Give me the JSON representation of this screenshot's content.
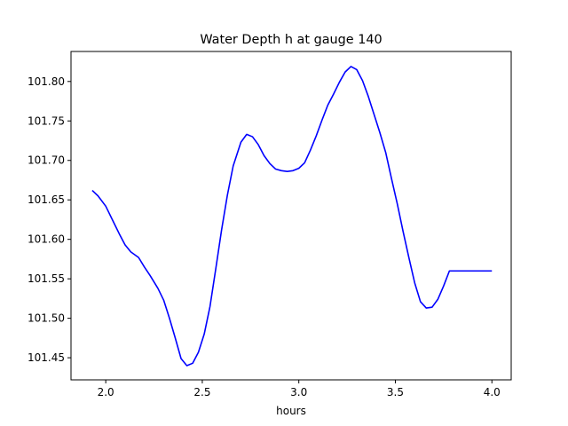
{
  "chart_data": {
    "type": "line",
    "title": "Water Depth h at gauge 140",
    "xlabel": "hours",
    "ylabel": "",
    "xlim": [
      1.82,
      4.1
    ],
    "ylim": [
      101.422,
      101.838
    ],
    "xticks": [
      2.0,
      2.5,
      3.0,
      3.5,
      4.0
    ],
    "xtick_labels": [
      "2.0",
      "2.5",
      "3.0",
      "3.5",
      "4.0"
    ],
    "yticks": [
      101.45,
      101.5,
      101.55,
      101.6,
      101.65,
      101.7,
      101.75,
      101.8
    ],
    "ytick_labels": [
      "101.45",
      "101.50",
      "101.55",
      "101.60",
      "101.65",
      "101.70",
      "101.75",
      "101.80"
    ],
    "grid": false,
    "series": [
      {
        "color": "#0000ff",
        "x": [
          1.93,
          1.96,
          2.0,
          2.04,
          2.07,
          2.1,
          2.13,
          2.17,
          2.2,
          2.23,
          2.27,
          2.3,
          2.33,
          2.36,
          2.39,
          2.42,
          2.45,
          2.48,
          2.51,
          2.54,
          2.57,
          2.6,
          2.63,
          2.66,
          2.7,
          2.73,
          2.76,
          2.79,
          2.82,
          2.85,
          2.88,
          2.91,
          2.94,
          2.97,
          3.0,
          3.03,
          3.06,
          3.09,
          3.12,
          3.15,
          3.18,
          3.21,
          3.24,
          3.27,
          3.3,
          3.33,
          3.36,
          3.39,
          3.42,
          3.45,
          3.48,
          3.51,
          3.54,
          3.57,
          3.6,
          3.63,
          3.66,
          3.69,
          3.72,
          3.75,
          3.78,
          3.81,
          3.84,
          3.87,
          3.9,
          3.93,
          3.96,
          4.0
        ],
        "y": [
          101.662,
          101.655,
          101.642,
          101.622,
          101.607,
          101.593,
          101.584,
          101.577,
          101.565,
          101.554,
          101.538,
          101.523,
          101.5,
          101.475,
          101.449,
          101.44,
          101.443,
          101.457,
          101.48,
          101.515,
          101.563,
          101.612,
          101.656,
          101.693,
          101.723,
          101.733,
          101.73,
          101.72,
          101.706,
          101.696,
          101.689,
          101.687,
          101.686,
          101.687,
          101.69,
          101.697,
          101.713,
          101.731,
          101.751,
          101.77,
          101.784,
          101.799,
          101.812,
          101.819,
          101.815,
          101.801,
          101.781,
          101.758,
          101.735,
          101.71,
          101.677,
          101.645,
          101.61,
          101.577,
          101.545,
          101.521,
          101.513,
          101.514,
          101.524,
          101.541,
          101.56,
          101.56,
          101.56,
          101.56,
          101.56,
          101.56,
          101.56,
          101.56
        ]
      }
    ]
  }
}
